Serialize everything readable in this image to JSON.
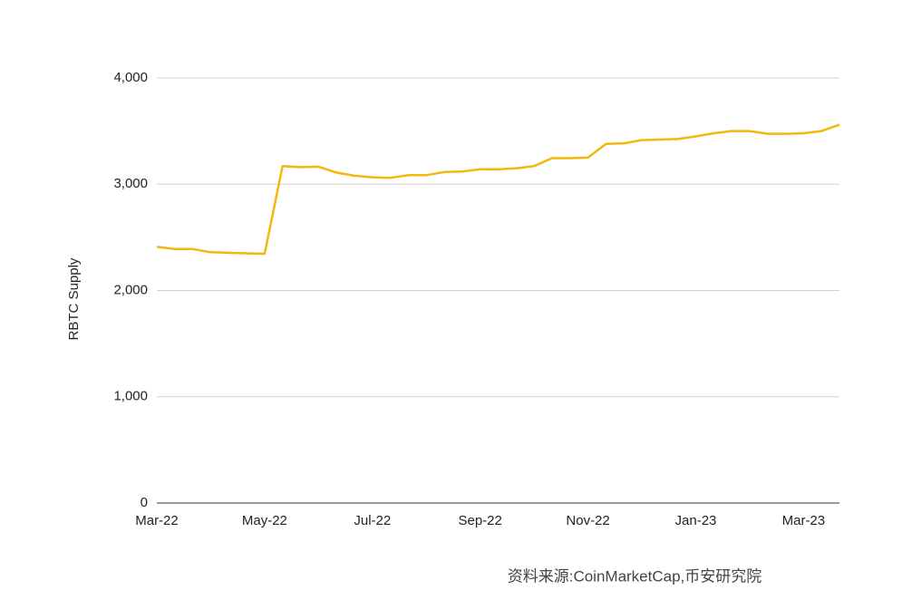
{
  "chart_data": {
    "type": "line",
    "y_label": "RBTC Supply",
    "source": "资料来源:CoinMarketCap,币安研究院",
    "categories": [
      "Mar-22",
      null,
      null,
      null,
      null,
      null,
      "May-22",
      null,
      null,
      null,
      null,
      null,
      "Jul-22",
      null,
      null,
      null,
      null,
      null,
      "Sep-22",
      null,
      null,
      null,
      null,
      null,
      "Nov-22",
      null,
      null,
      null,
      null,
      null,
      "Jan-23",
      null,
      null,
      null,
      null,
      null,
      "Mar-23",
      null,
      null
    ],
    "series": [
      {
        "name": "RBTC Supply",
        "color": "#f0b90b",
        "values": [
          2410,
          2390,
          2390,
          2360,
          2355,
          2350,
          2345,
          3170,
          3160,
          3165,
          3110,
          3080,
          3065,
          3060,
          3085,
          3085,
          3115,
          3120,
          3140,
          3140,
          3150,
          3170,
          3245,
          3245,
          3250,
          3380,
          3385,
          3415,
          3420,
          3425,
          3450,
          3480,
          3500,
          3500,
          3475,
          3475,
          3480,
          3500,
          3560
        ]
      }
    ],
    "ylim": [
      0,
      4000
    ],
    "yticks": [
      0,
      {
        "value": 1000,
        "label": "1,000"
      },
      {
        "value": 2000,
        "label": "2,000"
      },
      {
        "value": 3000,
        "label": "3,000"
      },
      {
        "value": 4000,
        "label": "4,000"
      }
    ],
    "grid": true
  }
}
